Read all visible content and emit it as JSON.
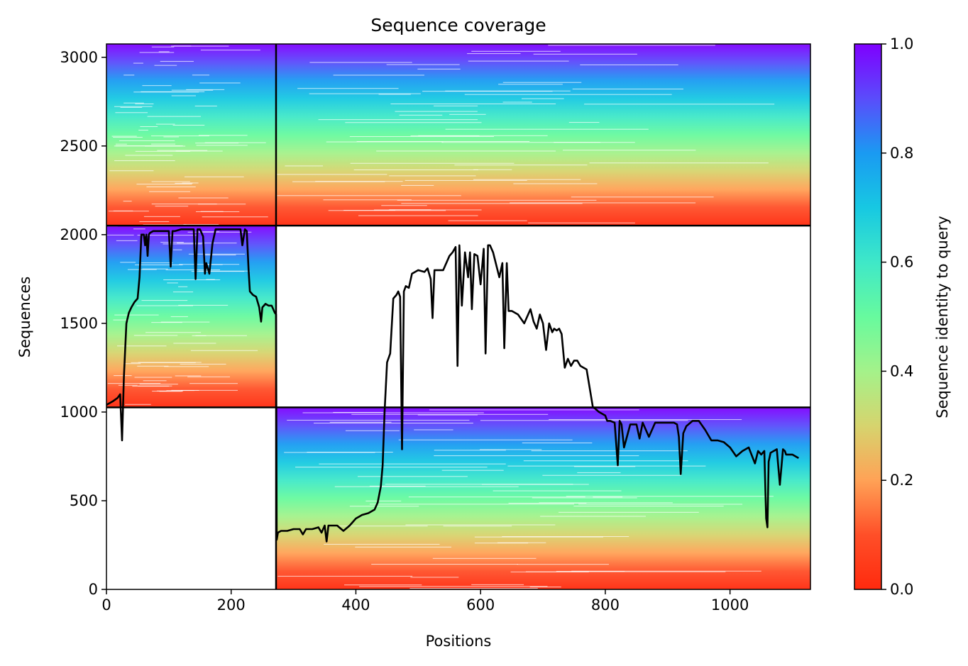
{
  "chart_data": {
    "type": "heatmap",
    "title": "Sequence coverage",
    "xlabel": "Positions",
    "ylabel": "Sequences",
    "xlim": [
      0,
      1129
    ],
    "ylim": [
      0,
      3075
    ],
    "xticks": [
      0,
      200,
      400,
      600,
      800,
      1000
    ],
    "yticks": [
      0,
      500,
      1000,
      1500,
      2000,
      2500,
      3000
    ],
    "colorbar": {
      "label": "Sequence identity to query",
      "range": [
        0,
        1
      ],
      "ticks": [
        "0.0",
        "0.2",
        "0.4",
        "0.6",
        "0.8",
        "1.0"
      ],
      "colormap": "rainbow_r"
    },
    "blocks": [
      {
        "x": [
          0,
          272
        ],
        "y": [
          2051,
          3075
        ]
      },
      {
        "x": [
          272,
          1129
        ],
        "y": [
          2051,
          3075
        ]
      },
      {
        "x": [
          0,
          272
        ],
        "y": [
          1026,
          2051
        ]
      },
      {
        "x": [
          272,
          1129
        ],
        "y": [
          0,
          1026
        ]
      }
    ],
    "block_boundaries": {
      "x": 272,
      "y": [
        1026,
        2051
      ]
    },
    "coverage_line": {
      "color": "#000000",
      "x": [
        0,
        10,
        18,
        22,
        25,
        28,
        32,
        36,
        40,
        45,
        50,
        53,
        56,
        60,
        62,
        64,
        66,
        68,
        70,
        75,
        80,
        85,
        90,
        95,
        100,
        103,
        106,
        110,
        120,
        130,
        140,
        143,
        146,
        150,
        155,
        158,
        160,
        165,
        170,
        175,
        180,
        190,
        200,
        210,
        215,
        218,
        222,
        225,
        228,
        230,
        235,
        240,
        245,
        248,
        250,
        255,
        260,
        265,
        270,
        272,
        273,
        275,
        280,
        290,
        300,
        310,
        315,
        320,
        330,
        340,
        345,
        350,
        353,
        356,
        360,
        370,
        380,
        390,
        400,
        410,
        420,
        430,
        435,
        440,
        443,
        446,
        450,
        455,
        460,
        465,
        468,
        471,
        474,
        477,
        480,
        485,
        490,
        500,
        510,
        515,
        520,
        523,
        526,
        530,
        540,
        550,
        555,
        560,
        563,
        566,
        570,
        575,
        580,
        583,
        586,
        590,
        595,
        600,
        605,
        608,
        612,
        615,
        620,
        630,
        635,
        638,
        642,
        645,
        650,
        660,
        670,
        680,
        685,
        690,
        695,
        700,
        705,
        710,
        715,
        718,
        722,
        726,
        730,
        735,
        740,
        745,
        750,
        755,
        760,
        770,
        780,
        790,
        795,
        800,
        803,
        808,
        815,
        820,
        823,
        826,
        830,
        840,
        850,
        855,
        860,
        870,
        880,
        890,
        900,
        910,
        915,
        918,
        921,
        925,
        930,
        940,
        950,
        960,
        970,
        980,
        990,
        1000,
        1010,
        1020,
        1030,
        1040,
        1045,
        1050,
        1055,
        1058,
        1060,
        1062,
        1065,
        1070,
        1075,
        1080,
        1085,
        1088,
        1090,
        1100,
        1110,
        1120,
        1129
      ],
      "y": [
        1040,
        1060,
        1080,
        1100,
        840,
        1200,
        1500,
        1560,
        1590,
        1620,
        1640,
        1760,
        2000,
        2000,
        1940,
        2000,
        1880,
        2000,
        2010,
        2020,
        2020,
        2020,
        2020,
        2020,
        2020,
        1820,
        2020,
        2020,
        2030,
        2030,
        2030,
        1750,
        2030,
        2030,
        1990,
        1780,
        1840,
        1780,
        1950,
        2030,
        2030,
        2030,
        2030,
        2030,
        2030,
        1940,
        2030,
        2020,
        1800,
        1680,
        1660,
        1650,
        1590,
        1510,
        1590,
        1610,
        1600,
        1600,
        1560,
        1550,
        280,
        320,
        330,
        330,
        340,
        340,
        310,
        340,
        340,
        350,
        320,
        360,
        270,
        360,
        360,
        360,
        330,
        360,
        400,
        420,
        430,
        450,
        490,
        580,
        700,
        1000,
        1280,
        1330,
        1640,
        1660,
        1680,
        1650,
        790,
        1680,
        1710,
        1700,
        1780,
        1800,
        1790,
        1810,
        1750,
        1530,
        1800,
        1800,
        1800,
        1880,
        1900,
        1930,
        1260,
        1940,
        1600,
        1900,
        1760,
        1900,
        1580,
        1890,
        1880,
        1720,
        1920,
        1330,
        1940,
        1940,
        1900,
        1760,
        1840,
        1360,
        1840,
        1570,
        1570,
        1550,
        1500,
        1580,
        1510,
        1470,
        1550,
        1500,
        1350,
        1500,
        1450,
        1470,
        1460,
        1470,
        1440,
        1250,
        1300,
        1260,
        1290,
        1290,
        1260,
        1240,
        1030,
        1000,
        990,
        980,
        950,
        950,
        940,
        700,
        950,
        930,
        800,
        930,
        930,
        850,
        940,
        860,
        940,
        940,
        940,
        940,
        930,
        860,
        650,
        880,
        920,
        950,
        950,
        900,
        840,
        840,
        830,
        800,
        750,
        780,
        800,
        710,
        780,
        760,
        780,
        400,
        350,
        720,
        770,
        780,
        790,
        590,
        790,
        780,
        760,
        760,
        740
      ]
    }
  }
}
